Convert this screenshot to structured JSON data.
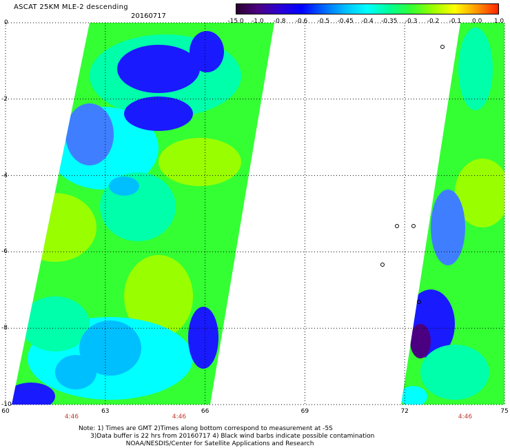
{
  "header": {
    "title": "ASCAT 25KM MLE-2 descending",
    "date": "20160717"
  },
  "colorbar": {
    "labels": [
      "-15.0",
      "-1.0",
      "-0.8",
      "-0.6",
      "-0.5",
      "-0.45",
      "-0.4",
      "-0.35",
      "-0.3",
      "-0.2",
      "-0.1",
      "0.0",
      "1.0"
    ],
    "colors": [
      "#2b0030",
      "#4b0082",
      "#2a00d4",
      "#0000ff",
      "#0066ff",
      "#00bfff",
      "#00ffff",
      "#00ff99",
      "#33ff33",
      "#99ff00",
      "#ffff00",
      "#ff9900",
      "#ff2200"
    ]
  },
  "axes": {
    "lat_labels": [
      "0",
      "-2",
      "-4",
      "-6",
      "-8",
      "-10"
    ],
    "lon_labels": [
      "60",
      "63",
      "66",
      "69",
      "72",
      "75"
    ],
    "time_labels": [
      "4:46",
      "4:46",
      "4:46"
    ]
  },
  "notes": [
    "Note: 1) Times are GMT 2)Times along bottom correspond to measurement at -5S",
    "      3)Data buffer is 22 hrs from 20160717 4) Black wind barbs indicate possible contamination",
    "                        NOAA/NESDIS/Center for Satellite Applications and Research"
  ],
  "swath_colors": {
    "deep": "#4b0082",
    "blue": "#1a1aff",
    "mid_blue": "#3f7fff",
    "light_blue": "#00bfff",
    "cyan": "#00ffff",
    "aqua": "#00ffaa",
    "green": "#33ff33",
    "lime": "#99ff00"
  }
}
